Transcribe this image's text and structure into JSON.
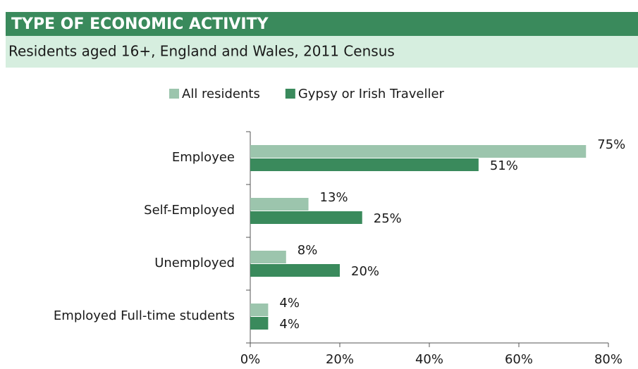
{
  "chart_data": {
    "type": "barh",
    "title": "TYPE OF ECONOMIC ACTIVITY",
    "subtitle": "Residents aged 16+, England and Wales, 2011 Census",
    "categories": [
      "Employee",
      "Self-Employed",
      "Unemployed",
      "Employed Full-time students"
    ],
    "series": [
      {
        "name": "All residents",
        "color": "#9cc5ad",
        "values": [
          75,
          13,
          8,
          4
        ],
        "value_labels": [
          "75%",
          "13%",
          "8%",
          "4%"
        ]
      },
      {
        "name": "Gypsy or Irish Traveller",
        "color": "#3a8a5c",
        "values": [
          51,
          25,
          20,
          4
        ],
        "value_labels": [
          "51%",
          "25%",
          "20%",
          "4%"
        ]
      }
    ],
    "xlim": [
      0,
      80
    ],
    "xticks": [
      {
        "value": 0,
        "label": "0%"
      },
      {
        "value": 20,
        "label": "20%"
      },
      {
        "value": 40,
        "label": "40%"
      },
      {
        "value": 60,
        "label": "60%"
      },
      {
        "value": 80,
        "label": "80%"
      }
    ],
    "legend": "top",
    "grid": false
  }
}
